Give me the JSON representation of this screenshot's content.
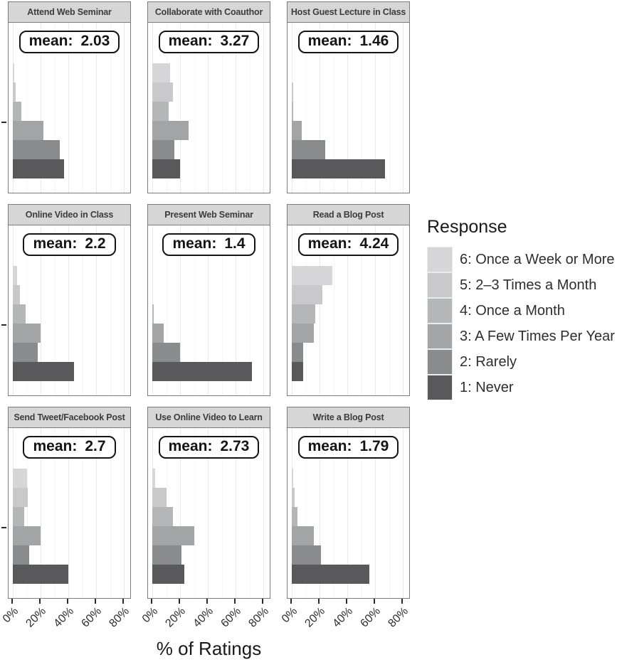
{
  "chart_data": {
    "type": "bar",
    "orientation": "horizontal",
    "xlabel": "% of Ratings",
    "xlim": [
      0,
      85
    ],
    "grid": "major and minor vertical gridlines every 10%",
    "x_ticks": [
      {
        "label": "0%",
        "value": 0
      },
      {
        "label": "20%",
        "value": 20
      },
      {
        "label": "40%",
        "value": 40
      },
      {
        "label": "60%",
        "value": 60
      },
      {
        "label": "80%",
        "value": 80
      }
    ],
    "legend": {
      "title": "Response",
      "position": "right",
      "entries": [
        {
          "response": 6,
          "label": "6: Once a Week or More",
          "color": "#d6d6d8"
        },
        {
          "response": 5,
          "label": "5: 2–3 Times a Month",
          "color": "#c9c9cb"
        },
        {
          "response": 4,
          "label": "4: Once a Month",
          "color": "#b5b6b8"
        },
        {
          "response": 3,
          "label": "3: A Few Times Per Year",
          "color": "#a3a4a6"
        },
        {
          "response": 2,
          "label": "2: Rarely",
          "color": "#8a8b8d"
        },
        {
          "response": 1,
          "label": "1: Never",
          "color": "#59595b"
        }
      ]
    },
    "bar_order_top_to_bottom": [
      6,
      5,
      4,
      3,
      2,
      1
    ],
    "facets": [
      {
        "title": "Attend Web Seminar",
        "mean_label": "mean:",
        "mean_value": "2.03",
        "percent_values": [
          1,
          2,
          6,
          22,
          34,
          37
        ]
      },
      {
        "title": "Collaborate with Coauthor",
        "mean_label": "mean:",
        "mean_value": "3.27",
        "percent_values": [
          13,
          15,
          12,
          26,
          16,
          20
        ]
      },
      {
        "title": "Host Guest Lecture in Class",
        "mean_label": "mean:",
        "mean_value": "1.46",
        "percent_values": [
          0,
          1,
          1,
          7,
          24,
          67
        ]
      },
      {
        "title": "Online Video in Class",
        "mean_label": "mean:",
        "mean_value": "2.2",
        "percent_values": [
          3,
          5,
          9,
          20,
          18,
          44
        ]
      },
      {
        "title": "Present Web Seminar",
        "mean_label": "mean:",
        "mean_value": "1.4",
        "percent_values": [
          0,
          0,
          1,
          8,
          20,
          72
        ]
      },
      {
        "title": "Read a Blog Post",
        "mean_label": "mean:",
        "mean_value": "4.24",
        "percent_values": [
          29,
          22,
          17,
          16,
          8,
          8
        ]
      },
      {
        "title": "Send Tweet/Facebook Post",
        "mean_label": "mean:",
        "mean_value": "2.7",
        "percent_values": [
          10,
          11,
          8,
          20,
          12,
          40
        ]
      },
      {
        "title": "Use Online Video to Learn",
        "mean_label": "mean:",
        "mean_value": "2.73",
        "percent_values": [
          2,
          10,
          15,
          30,
          21,
          23
        ]
      },
      {
        "title": "Write a Blog Post",
        "mean_label": "mean:",
        "mean_value": "1.79",
        "percent_values": [
          1,
          2,
          4,
          16,
          21,
          56
        ]
      }
    ]
  }
}
